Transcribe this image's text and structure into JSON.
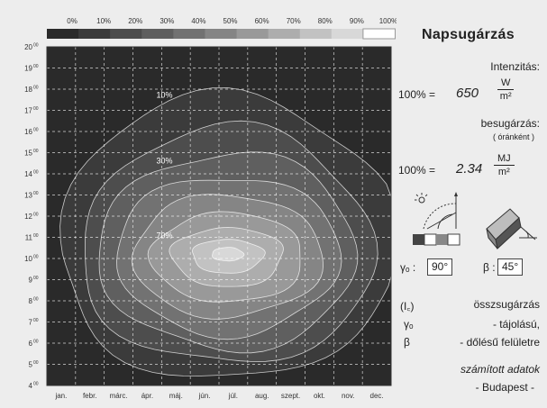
{
  "chart_data": {
    "type": "heatmap",
    "title": "Napsugárzás",
    "colorbar": {
      "ticks": [
        "0%",
        "10%",
        "20%",
        "30%",
        "40%",
        "50%",
        "60%",
        "70%",
        "80%",
        "90%",
        "100%"
      ],
      "colors": [
        "#2a2a2a",
        "#3b3b3b",
        "#4d4d4d",
        "#5f5f5f",
        "#727272",
        "#858585",
        "#999999",
        "#adadad",
        "#c2c2c2",
        "#d8d8d8",
        "#ffffff"
      ]
    },
    "x": {
      "tick_labels": [
        "jan.",
        "febr.",
        "márc.",
        "ápr.",
        "máj.",
        "jún.",
        "júl.",
        "aug.",
        "szept.",
        "okt.",
        "nov.",
        "dec."
      ],
      "range": [
        0,
        12
      ]
    },
    "y": {
      "tick_labels": [
        "4",
        "5",
        "6",
        "7",
        "8",
        "9",
        "10",
        "11",
        "12",
        "13",
        "14",
        "15",
        "16",
        "17",
        "18",
        "19",
        "20"
      ],
      "tick_suffix": "00",
      "range": [
        4,
        20
      ]
    },
    "peak": {
      "x": 6.3,
      "y": 10.2
    },
    "contour_levels": [
      10,
      20,
      30,
      40,
      50,
      60,
      70,
      80,
      90
    ],
    "contour_labels": [
      {
        "text": "10%",
        "level": 10,
        "x": 4.1,
        "y": 17.6
      },
      {
        "text": "30%",
        "level": 30,
        "x": 4.1,
        "y": 14.5
      },
      {
        "text": "70%",
        "level": 70,
        "x": 4.1,
        "y": 10.95
      }
    ],
    "grid": true
  },
  "panel": {
    "title": "Napsugárzás",
    "intensity_label": "Intenzitás:",
    "intensity_prefix": "100% =",
    "intensity_value": "650",
    "intensity_unit_num": "W",
    "intensity_unit_den": "m²",
    "irradiation_label": "besugárzás:",
    "irradiation_sub": "( óránként )",
    "irradiation_prefix": "100% =",
    "irradiation_value": "2.34",
    "irradiation_unit_num": "MJ",
    "irradiation_unit_den": "m²",
    "gamma_label": "γₒ :",
    "gamma_value": "90°",
    "beta_label": "β :",
    "beta_value": "45°",
    "legend_line1_sym": "(I꜀)",
    "legend_line1_text": "összsugárzás",
    "legend_line2_sym": "γₒ",
    "legend_line2_text": "- tájolású,",
    "legend_line3_sym": "β",
    "legend_line3_text": "- dőlésű felületre",
    "footer1": "számított adatok",
    "footer2": "- Budapest -"
  }
}
